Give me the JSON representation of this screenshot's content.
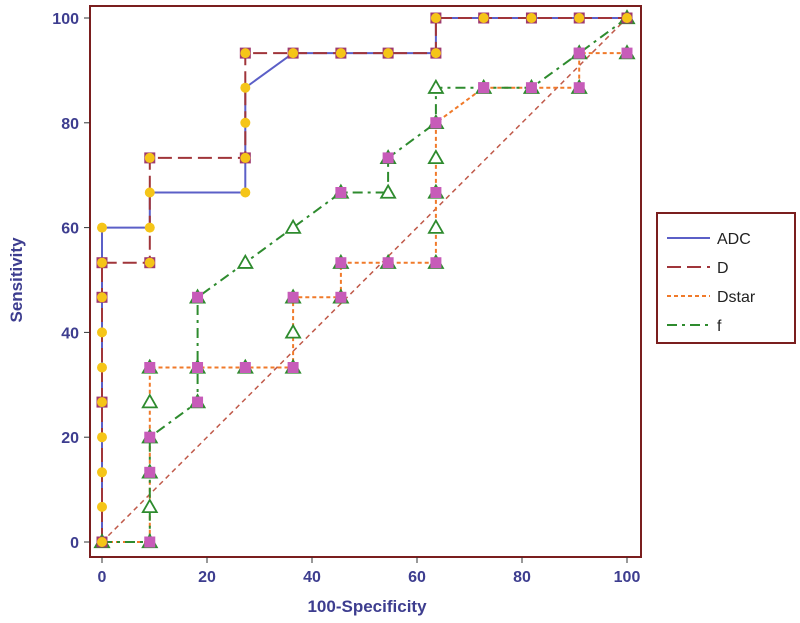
{
  "chart_data": {
    "type": "line",
    "title": "",
    "xlabel": "100-Specificity",
    "ylabel": "Sensitivity",
    "xlim": [
      0,
      100
    ],
    "ylim": [
      0,
      100
    ],
    "xticks": [
      0,
      20,
      40,
      60,
      80,
      100
    ],
    "yticks": [
      0,
      20,
      40,
      60,
      80,
      100
    ],
    "grid": false,
    "legend_position": "right",
    "reference_line": {
      "from": [
        0,
        0
      ],
      "to": [
        100,
        100
      ],
      "color": "#c05a4a",
      "style": "dashed"
    },
    "series": [
      {
        "name": "ADC",
        "color": "#5b5fc7",
        "dash": "solid",
        "marker": "circle",
        "marker_color": "#f5c518",
        "points": [
          [
            0,
            0
          ],
          [
            0,
            6.7
          ],
          [
            0,
            13.3
          ],
          [
            0,
            20
          ],
          [
            0,
            26.7
          ],
          [
            0,
            33.3
          ],
          [
            0,
            40
          ],
          [
            0,
            46.7
          ],
          [
            0,
            53.3
          ],
          [
            0,
            60
          ],
          [
            9.1,
            60
          ],
          [
            9.1,
            66.7
          ],
          [
            27.3,
            66.7
          ],
          [
            27.3,
            73.3
          ],
          [
            27.3,
            80
          ],
          [
            27.3,
            86.7
          ],
          [
            36.4,
            93.3
          ],
          [
            45.5,
            93.3
          ],
          [
            54.5,
            93.3
          ],
          [
            63.6,
            93.3
          ],
          [
            63.6,
            100
          ],
          [
            72.7,
            100
          ],
          [
            81.8,
            100
          ],
          [
            90.9,
            100
          ],
          [
            100,
            100
          ]
        ]
      },
      {
        "name": "D",
        "color": "#a0353a",
        "dash": "longdash",
        "marker": "square",
        "marker_color": "#9e3a6e",
        "points": [
          [
            0,
            0
          ],
          [
            0,
            26.7
          ],
          [
            0,
            46.7
          ],
          [
            0,
            53.3
          ],
          [
            9.1,
            53.3
          ],
          [
            9.1,
            73.3
          ],
          [
            27.3,
            73.3
          ],
          [
            27.3,
            93.3
          ],
          [
            36.4,
            93.3
          ],
          [
            45.5,
            93.3
          ],
          [
            54.5,
            93.3
          ],
          [
            63.6,
            93.3
          ],
          [
            63.6,
            100
          ],
          [
            72.7,
            100
          ],
          [
            81.8,
            100
          ],
          [
            90.9,
            100
          ],
          [
            100,
            100
          ]
        ]
      },
      {
        "name": "Dstar",
        "color": "#f07a2a",
        "dash": "dotted",
        "marker": "square",
        "marker_color": "#c75cb9",
        "points": [
          [
            0,
            0
          ],
          [
            9.1,
            0
          ],
          [
            9.1,
            13.3
          ],
          [
            9.1,
            20
          ],
          [
            9.1,
            33.3
          ],
          [
            18.2,
            33.3
          ],
          [
            27.3,
            33.3
          ],
          [
            36.4,
            33.3
          ],
          [
            36.4,
            46.7
          ],
          [
            45.5,
            46.7
          ],
          [
            45.5,
            53.3
          ],
          [
            54.5,
            53.3
          ],
          [
            63.6,
            53.3
          ],
          [
            63.6,
            66.7
          ],
          [
            63.6,
            80
          ],
          [
            72.7,
            86.7
          ],
          [
            81.8,
            86.7
          ],
          [
            90.9,
            86.7
          ],
          [
            90.9,
            93.3
          ],
          [
            100,
            93.3
          ]
        ]
      },
      {
        "name": "f",
        "color": "#2e8b2e",
        "dash": "dashdot",
        "marker": "triangle",
        "marker_color": "#2e8b2e",
        "points": [
          [
            0,
            0
          ],
          [
            9.1,
            0
          ],
          [
            9.1,
            6.7
          ],
          [
            9.1,
            13.3
          ],
          [
            9.1,
            20
          ],
          [
            18.2,
            26.7
          ],
          [
            18.2,
            46.7
          ],
          [
            27.3,
            53.3
          ],
          [
            36.4,
            60
          ],
          [
            45.5,
            66.7
          ],
          [
            54.5,
            66.7
          ],
          [
            54.5,
            73.3
          ],
          [
            63.6,
            80
          ],
          [
            63.6,
            86.7
          ],
          [
            72.7,
            86.7
          ],
          [
            81.8,
            86.7
          ],
          [
            90.9,
            93.3
          ],
          [
            100,
            100
          ]
        ]
      }
    ],
    "extra_markers": [
      {
        "series": "ADC",
        "points": [
          [
            9.1,
            73.3
          ],
          [
            9.1,
            53.3
          ],
          [
            27.3,
            93.3
          ]
        ]
      },
      {
        "series": "Dstar",
        "points": [
          [
            18.2,
            46.7
          ],
          [
            18.2,
            26.7
          ],
          [
            45.5,
            66.7
          ],
          [
            54.5,
            73.3
          ],
          [
            63.6,
            80
          ],
          [
            72.7,
            86.7
          ],
          [
            90.9,
            93.3
          ]
        ]
      },
      {
        "series": "f",
        "points": [
          [
            9.1,
            26.7
          ],
          [
            9.1,
            33.3
          ],
          [
            18.2,
            33.3
          ],
          [
            27.3,
            33.3
          ],
          [
            36.4,
            33.3
          ],
          [
            36.4,
            40
          ],
          [
            36.4,
            46.7
          ],
          [
            45.5,
            46.7
          ],
          [
            45.5,
            53.3
          ],
          [
            54.5,
            53.3
          ],
          [
            63.6,
            53.3
          ],
          [
            63.6,
            60
          ],
          [
            63.6,
            66.7
          ],
          [
            63.6,
            73.3
          ],
          [
            90.9,
            86.7
          ],
          [
            100,
            93.3
          ]
        ]
      }
    ]
  },
  "legend": {
    "items": [
      {
        "label": "ADC",
        "color": "#5b5fc7",
        "dash": "solid"
      },
      {
        "label": "D",
        "color": "#a0353a",
        "dash": "longdash"
      },
      {
        "label": "Dstar",
        "color": "#f07a2a",
        "dash": "dotted"
      },
      {
        "label": "f",
        "color": "#2e8b2e",
        "dash": "dashdot"
      }
    ]
  },
  "frame_color": "#7a1e1e"
}
